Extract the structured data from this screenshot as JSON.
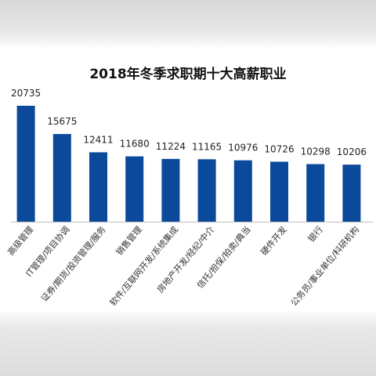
{
  "chart_data": {
    "type": "bar",
    "title": "2018年冬季求职期十大高薪职业",
    "xlabel": "",
    "ylabel": "",
    "categories": [
      "高级管理",
      "IT管理/项目协调",
      "证券/期货/投资管理/服务",
      "销售管理",
      "软件/互联网开发/系统集成",
      "房地产开发/经纪/中介",
      "信托/担保/拍卖/典当",
      "硬件开发",
      "银行",
      "公务员/事业单位/科研机构"
    ],
    "values": [
      20735,
      15675,
      12411,
      11680,
      11224,
      11165,
      10976,
      10726,
      10298,
      10206
    ],
    "ylim": [
      0,
      22000
    ],
    "grid": false,
    "legend": "none",
    "bar_color": "#0b4a9b",
    "axis_color": "#bfbfbf"
  }
}
